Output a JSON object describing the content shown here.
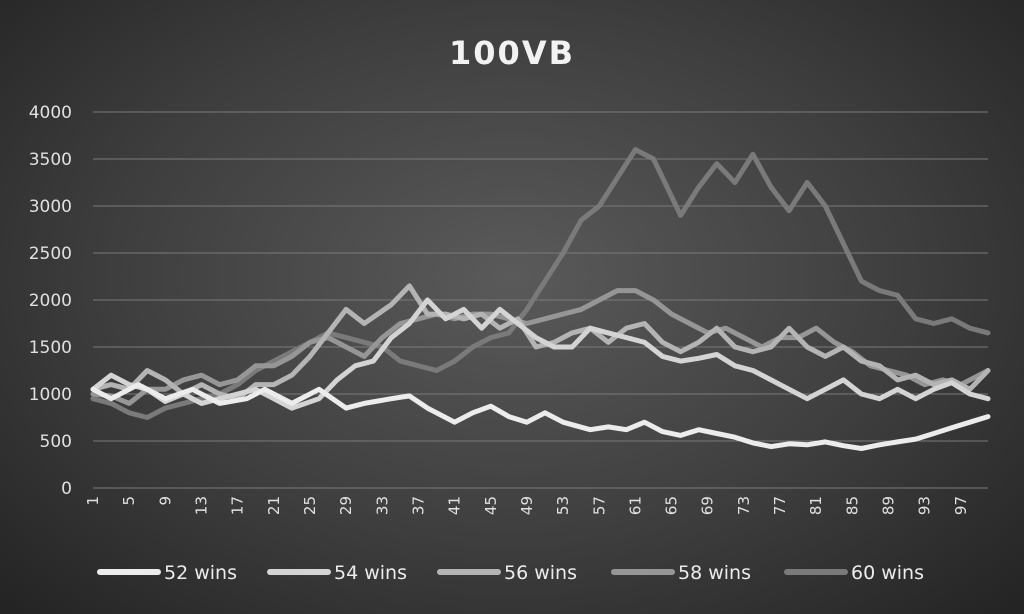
{
  "chart_data": {
    "type": "line",
    "title": "100VB",
    "xlabel": "",
    "ylabel": "",
    "ylim": [
      0,
      4000
    ],
    "yticks": [
      "0",
      "500",
      "1000",
      "1500",
      "2000",
      "2500",
      "3000",
      "3500",
      "4000"
    ],
    "xticks": [
      "1",
      "5",
      "9",
      "13",
      "17",
      "21",
      "25",
      "29",
      "33",
      "37",
      "41",
      "45",
      "49",
      "53",
      "57",
      "61",
      "65",
      "69",
      "73",
      "77",
      "81",
      "85",
      "89",
      "93",
      "97"
    ],
    "grid": true,
    "legend": "bottom",
    "series": [
      {
        "name": "52 wins",
        "color": "#ececec",
        "anchors": [
          [
            1,
            1050
          ],
          [
            3,
            950
          ],
          [
            6,
            1100
          ],
          [
            9,
            950
          ],
          [
            12,
            1050
          ],
          [
            15,
            900
          ],
          [
            18,
            950
          ],
          [
            20,
            1050
          ],
          [
            23,
            900
          ],
          [
            26,
            1050
          ],
          [
            29,
            850
          ],
          [
            31,
            900
          ],
          [
            34,
            950
          ],
          [
            36,
            980
          ],
          [
            38,
            850
          ],
          [
            41,
            700
          ],
          [
            43,
            800
          ],
          [
            45,
            870
          ],
          [
            47,
            760
          ],
          [
            49,
            700
          ],
          [
            51,
            800
          ],
          [
            53,
            700
          ],
          [
            56,
            620
          ],
          [
            58,
            650
          ],
          [
            60,
            620
          ],
          [
            62,
            700
          ],
          [
            64,
            600
          ],
          [
            66,
            560
          ],
          [
            68,
            620
          ],
          [
            70,
            580
          ],
          [
            72,
            540
          ],
          [
            74,
            480
          ],
          [
            76,
            440
          ],
          [
            78,
            470
          ],
          [
            80,
            460
          ],
          [
            82,
            490
          ],
          [
            84,
            450
          ],
          [
            86,
            420
          ],
          [
            88,
            460
          ],
          [
            90,
            490
          ],
          [
            92,
            520
          ],
          [
            94,
            580
          ],
          [
            96,
            640
          ],
          [
            98,
            700
          ],
          [
            100,
            760
          ]
        ]
      },
      {
        "name": "54 wins",
        "color": "#d4d4d4",
        "anchors": [
          [
            1,
            1050
          ],
          [
            3,
            1200
          ],
          [
            5,
            1100
          ],
          [
            7,
            1050
          ],
          [
            9,
            920
          ],
          [
            11,
            1000
          ],
          [
            13,
            900
          ],
          [
            15,
            950
          ],
          [
            17,
            1000
          ],
          [
            19,
            1050
          ],
          [
            21,
            950
          ],
          [
            23,
            850
          ],
          [
            26,
            950
          ],
          [
            28,
            1150
          ],
          [
            30,
            1300
          ],
          [
            32,
            1350
          ],
          [
            34,
            1600
          ],
          [
            36,
            1750
          ],
          [
            38,
            2000
          ],
          [
            40,
            1800
          ],
          [
            42,
            1900
          ],
          [
            44,
            1700
          ],
          [
            46,
            1900
          ],
          [
            48,
            1750
          ],
          [
            50,
            1600
          ],
          [
            52,
            1500
          ],
          [
            54,
            1500
          ],
          [
            56,
            1700
          ],
          [
            58,
            1650
          ],
          [
            60,
            1600
          ],
          [
            62,
            1550
          ],
          [
            64,
            1400
          ],
          [
            66,
            1350
          ],
          [
            68,
            1380
          ],
          [
            70,
            1420
          ],
          [
            72,
            1300
          ],
          [
            74,
            1250
          ],
          [
            76,
            1150
          ],
          [
            78,
            1050
          ],
          [
            80,
            950
          ],
          [
            82,
            1050
          ],
          [
            84,
            1150
          ],
          [
            86,
            1000
          ],
          [
            88,
            950
          ],
          [
            90,
            1050
          ],
          [
            92,
            950
          ],
          [
            94,
            1050
          ],
          [
            96,
            1120
          ],
          [
            98,
            1000
          ],
          [
            100,
            950
          ]
        ]
      },
      {
        "name": "56 wins",
        "color": "#b4b4b4",
        "anchors": [
          [
            1,
            1050
          ],
          [
            3,
            1100
          ],
          [
            5,
            1050
          ],
          [
            7,
            1250
          ],
          [
            9,
            1150
          ],
          [
            11,
            1000
          ],
          [
            13,
            1100
          ],
          [
            15,
            1000
          ],
          [
            17,
            950
          ],
          [
            19,
            1100
          ],
          [
            21,
            1100
          ],
          [
            23,
            1200
          ],
          [
            25,
            1400
          ],
          [
            27,
            1650
          ],
          [
            29,
            1900
          ],
          [
            31,
            1750
          ],
          [
            34,
            1950
          ],
          [
            36,
            2150
          ],
          [
            38,
            1850
          ],
          [
            40,
            1850
          ],
          [
            42,
            1800
          ],
          [
            44,
            1850
          ],
          [
            46,
            1700
          ],
          [
            48,
            1800
          ],
          [
            50,
            1500
          ],
          [
            52,
            1550
          ],
          [
            54,
            1650
          ],
          [
            56,
            1700
          ],
          [
            58,
            1550
          ],
          [
            60,
            1700
          ],
          [
            62,
            1750
          ],
          [
            64,
            1550
          ],
          [
            66,
            1450
          ],
          [
            68,
            1550
          ],
          [
            70,
            1700
          ],
          [
            72,
            1500
          ],
          [
            74,
            1450
          ],
          [
            76,
            1500
          ],
          [
            78,
            1700
          ],
          [
            80,
            1500
          ],
          [
            82,
            1400
          ],
          [
            84,
            1500
          ],
          [
            86,
            1350
          ],
          [
            88,
            1300
          ],
          [
            90,
            1150
          ],
          [
            92,
            1200
          ],
          [
            94,
            1100
          ],
          [
            96,
            1150
          ],
          [
            98,
            1050
          ],
          [
            100,
            1250
          ]
        ]
      },
      {
        "name": "58 wins",
        "color": "#969696",
        "anchors": [
          [
            1,
            1000
          ],
          [
            3,
            980
          ],
          [
            5,
            900
          ],
          [
            7,
            1050
          ],
          [
            9,
            1050
          ],
          [
            11,
            1150
          ],
          [
            13,
            1200
          ],
          [
            15,
            1100
          ],
          [
            17,
            1150
          ],
          [
            19,
            1300
          ],
          [
            21,
            1300
          ],
          [
            23,
            1400
          ],
          [
            25,
            1550
          ],
          [
            27,
            1600
          ],
          [
            29,
            1500
          ],
          [
            31,
            1400
          ],
          [
            33,
            1600
          ],
          [
            35,
            1750
          ],
          [
            37,
            1800
          ],
          [
            39,
            1850
          ],
          [
            41,
            1800
          ],
          [
            43,
            1850
          ],
          [
            45,
            1850
          ],
          [
            47,
            1800
          ],
          [
            49,
            1750
          ],
          [
            51,
            1800
          ],
          [
            53,
            1850
          ],
          [
            55,
            1900
          ],
          [
            57,
            2000
          ],
          [
            59,
            2100
          ],
          [
            61,
            2100
          ],
          [
            63,
            2000
          ],
          [
            65,
            1850
          ],
          [
            67,
            1750
          ],
          [
            69,
            1650
          ],
          [
            71,
            1700
          ],
          [
            73,
            1600
          ],
          [
            75,
            1500
          ],
          [
            77,
            1600
          ],
          [
            79,
            1600
          ],
          [
            81,
            1700
          ],
          [
            83,
            1550
          ],
          [
            85,
            1450
          ],
          [
            87,
            1300
          ],
          [
            89,
            1250
          ],
          [
            91,
            1200
          ],
          [
            93,
            1100
          ],
          [
            95,
            1150
          ],
          [
            97,
            1100
          ],
          [
            99,
            1200
          ],
          [
            100,
            1250
          ]
        ]
      },
      {
        "name": "60 wins",
        "color": "#7a7a7a",
        "anchors": [
          [
            1,
            950
          ],
          [
            3,
            900
          ],
          [
            5,
            800
          ],
          [
            7,
            750
          ],
          [
            9,
            850
          ],
          [
            11,
            900
          ],
          [
            13,
            950
          ],
          [
            15,
            1000
          ],
          [
            17,
            1100
          ],
          [
            19,
            1250
          ],
          [
            21,
            1350
          ],
          [
            23,
            1450
          ],
          [
            25,
            1550
          ],
          [
            27,
            1650
          ],
          [
            29,
            1600
          ],
          [
            31,
            1550
          ],
          [
            33,
            1500
          ],
          [
            35,
            1350
          ],
          [
            37,
            1300
          ],
          [
            39,
            1250
          ],
          [
            41,
            1350
          ],
          [
            43,
            1500
          ],
          [
            45,
            1600
          ],
          [
            47,
            1650
          ],
          [
            49,
            1900
          ],
          [
            51,
            2200
          ],
          [
            53,
            2500
          ],
          [
            55,
            2850
          ],
          [
            57,
            3000
          ],
          [
            59,
            3300
          ],
          [
            61,
            3600
          ],
          [
            63,
            3500
          ],
          [
            65,
            3100
          ],
          [
            66,
            2900
          ],
          [
            68,
            3200
          ],
          [
            70,
            3450
          ],
          [
            72,
            3250
          ],
          [
            74,
            3550
          ],
          [
            76,
            3200
          ],
          [
            78,
            2950
          ],
          [
            80,
            3250
          ],
          [
            82,
            3000
          ],
          [
            84,
            2600
          ],
          [
            86,
            2200
          ],
          [
            88,
            2100
          ],
          [
            90,
            2050
          ],
          [
            92,
            1800
          ],
          [
            94,
            1750
          ],
          [
            96,
            1800
          ],
          [
            98,
            1700
          ],
          [
            100,
            1650
          ]
        ]
      }
    ]
  }
}
